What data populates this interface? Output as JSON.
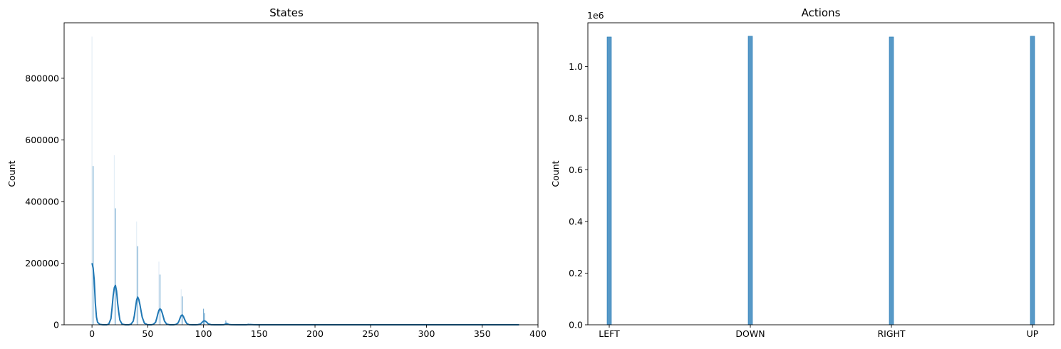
{
  "chart_data": [
    {
      "type": "histogram",
      "title": "States",
      "xlabel": "",
      "ylabel": "Count",
      "xlim": [
        -25,
        400
      ],
      "ylim": [
        0,
        980000
      ],
      "xticks": [
        0,
        50,
        100,
        150,
        200,
        250,
        300,
        350,
        400
      ],
      "yticks": [
        0,
        200000,
        400000,
        600000,
        800000
      ],
      "grid": false,
      "bar_color": "#1f77b4",
      "bars": [
        {
          "x": 0,
          "y": 935000,
          "faint": true
        },
        {
          "x": 1,
          "y": 515000
        },
        {
          "x": 20,
          "y": 550000,
          "faint": true
        },
        {
          "x": 21,
          "y": 378000
        },
        {
          "x": 40,
          "y": 335000,
          "faint": true
        },
        {
          "x": 41,
          "y": 255000
        },
        {
          "x": 60,
          "y": 205000,
          "faint": true
        },
        {
          "x": 61,
          "y": 163000
        },
        {
          "x": 80,
          "y": 115000,
          "faint": true
        },
        {
          "x": 81,
          "y": 92000
        },
        {
          "x": 100,
          "y": 52000
        },
        {
          "x": 101,
          "y": 38000
        },
        {
          "x": 120,
          "y": 14000
        },
        {
          "x": 121,
          "y": 8000
        },
        {
          "x": 140,
          "y": 4000
        },
        {
          "x": 141,
          "y": 2500
        }
      ],
      "kde": {
        "x": [
          0,
          1,
          2,
          3,
          4,
          5,
          7,
          10,
          13,
          15,
          17,
          18,
          19,
          20,
          21,
          22,
          23,
          24,
          25,
          27,
          30,
          33,
          35,
          37,
          38,
          39,
          40,
          41,
          42,
          43,
          44,
          45,
          47,
          50,
          53,
          55,
          57,
          58,
          59,
          60,
          61,
          62,
          63,
          64,
          65,
          67,
          70,
          73,
          75,
          77,
          78,
          79,
          80,
          81,
          82,
          83,
          84,
          85,
          87,
          90,
          93,
          95,
          97,
          98,
          99,
          100,
          101,
          102,
          103,
          104,
          105,
          107,
          110,
          115,
          118,
          119,
          120,
          121,
          122,
          123,
          125,
          130,
          138,
          140,
          142,
          145,
          150,
          200,
          250,
          300,
          350,
          383
        ],
        "y": [
          200000,
          185000,
          145000,
          70000,
          25000,
          8000,
          1500,
          0,
          0,
          2000,
          20000,
          55000,
          95000,
          120000,
          128000,
          110000,
          70000,
          40000,
          15000,
          2000,
          0,
          0,
          2000,
          12000,
          30000,
          55000,
          80000,
          90000,
          82000,
          65000,
          45000,
          25000,
          5000,
          0,
          0,
          1500,
          8000,
          20000,
          35000,
          47000,
          52000,
          48000,
          38000,
          25000,
          12000,
          2000,
          0,
          0,
          1000,
          5000,
          12000,
          22000,
          30000,
          32000,
          27000,
          18000,
          10000,
          4000,
          500,
          0,
          0,
          500,
          2000,
          5000,
          9000,
          12000,
          13000,
          11000,
          8000,
          4000,
          2000,
          300,
          0,
          0,
          300,
          1200,
          2500,
          3000,
          2200,
          1000,
          200,
          0,
          0,
          600,
          800,
          300,
          0,
          0,
          0,
          0,
          0,
          0
        ],
        "color": "#1f77b4"
      }
    },
    {
      "type": "histogram",
      "title": "Actions",
      "xlabel": "",
      "ylabel": "Count",
      "y_offset_label": "1e6",
      "categories": [
        "LEFT",
        "DOWN",
        "RIGHT",
        "UP"
      ],
      "values": [
        1.115,
        1.118,
        1.115,
        1.118
      ],
      "ylim": [
        0,
        1.17
      ],
      "yticks": [
        0.0,
        0.2,
        0.4,
        0.6,
        0.8,
        1.0
      ],
      "ytick_labels": [
        "0.0",
        "0.2",
        "0.4",
        "0.6",
        "0.8",
        "1.0"
      ],
      "grid": false,
      "bar_color": "#1f77b4"
    }
  ]
}
